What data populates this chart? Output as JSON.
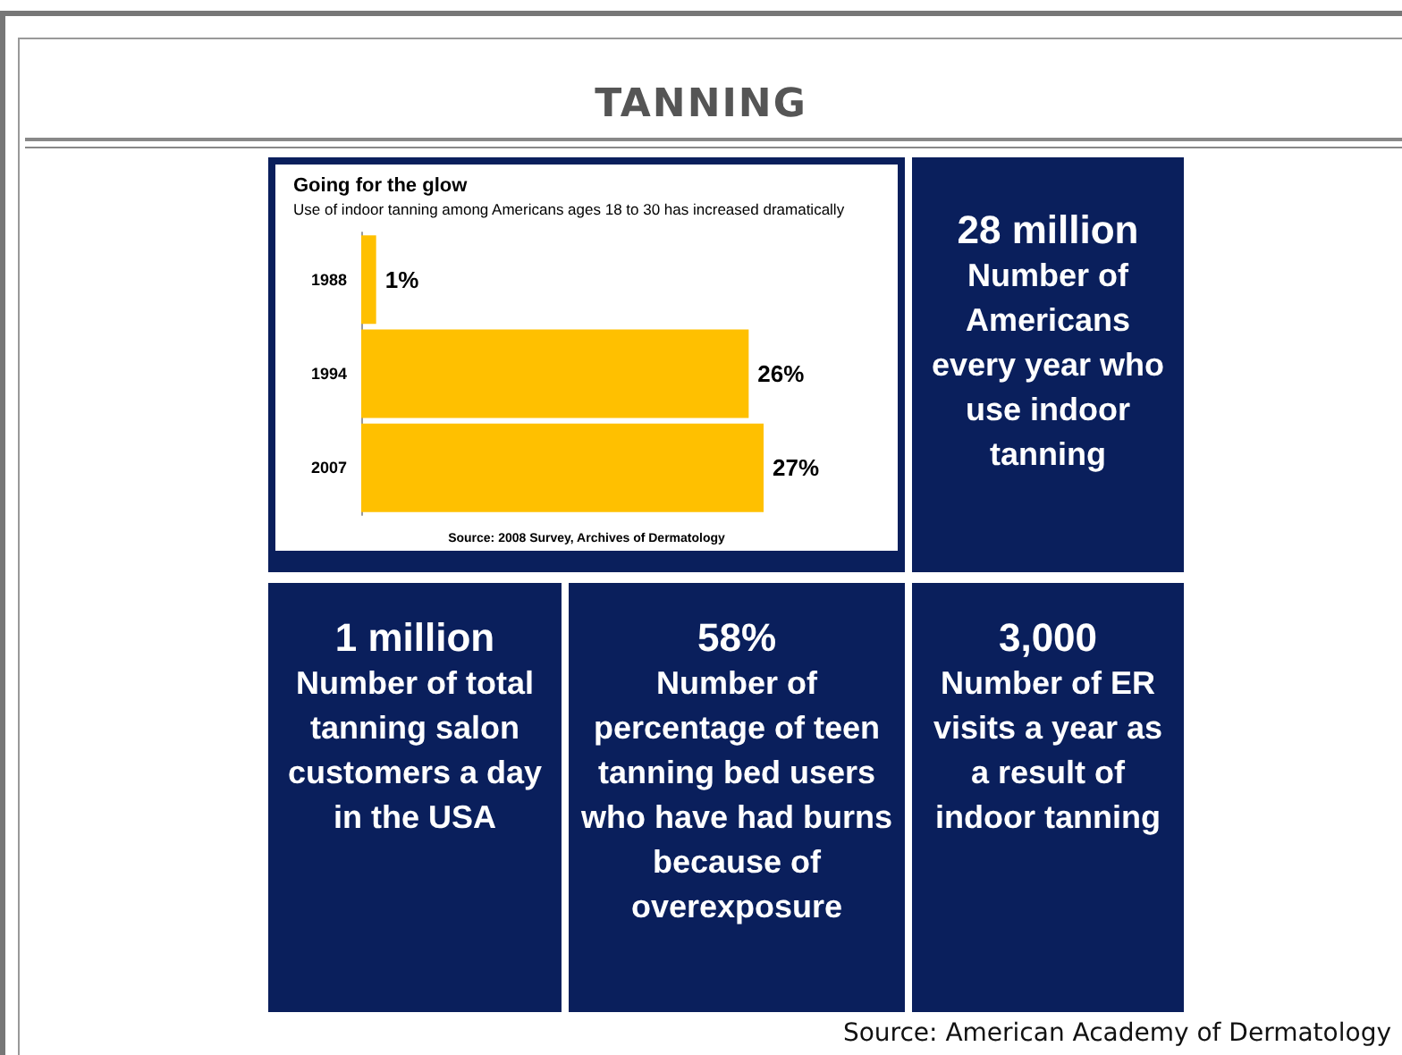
{
  "chart_data": [
    {
      "type": "other",
      "title": "TANNING",
      "annotations": [
        "Source: American Academy of Dermatology"
      ]
    },
    {
      "type": "bar",
      "orientation": "horizontal",
      "title": "Going for the glow",
      "subtitle": "Use of indoor tanning among Americans ages 18 to 30 has increased dramatically",
      "categories": [
        "1988",
        "1994",
        "2007"
      ],
      "values": [
        1,
        26,
        27
      ],
      "color": "#ffc000",
      "value_labels": [
        "1%",
        "26%",
        "27%"
      ],
      "annotations": [
        "Source:  2008 Survey, Archives of Dermatology"
      ]
    },
    {
      "type": "other",
      "title": "28 million",
      "subtitle": "Number of Americans every year who use indoor tanning"
    },
    {
      "type": "other",
      "title": "1 million",
      "subtitle": "Number of total tanning salon customers a day in the USA"
    },
    {
      "type": "other",
      "title": "58%",
      "subtitle": "Number of percentage of teen tanning bed users who have had burns because of overexposure"
    },
    {
      "type": "other",
      "title": "3,000",
      "subtitle": "Number of ER visits a year as a result of indoor tanning"
    }
  ]
}
